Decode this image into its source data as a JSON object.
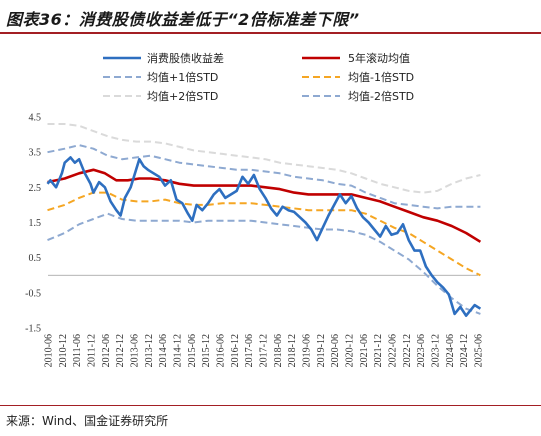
{
  "title": "图表36：消费股债收益差低于“2倍标准差下限”",
  "source": "来源：Wind、国金证券研究所",
  "chart_data": {
    "type": "line",
    "ylim": [
      -1.5,
      4.5
    ],
    "yticks": [
      4.5,
      3.5,
      2.5,
      1.5,
      0.5,
      -0.5,
      -1.5
    ],
    "xticks": [
      "2010-06",
      "2010-12",
      "2011-06",
      "2011-12",
      "2012-06",
      "2012-12",
      "2013-06",
      "2013-12",
      "2014-06",
      "2014-12",
      "2015-06",
      "2015-12",
      "2016-06",
      "2016-12",
      "2017-06",
      "2017-12",
      "2018-06",
      "2018-12",
      "2019-06",
      "2019-12",
      "2020-06",
      "2020-12",
      "2021-06",
      "2021-12",
      "2022-06",
      "2022-12",
      "2023-06",
      "2023-12",
      "2024-06",
      "2024-12",
      "2025-06"
    ],
    "legend_placement": "top",
    "series": [
      {
        "name": "消费股债收益差",
        "color": "#2e6fc0",
        "style": "solid",
        "width": 2.6,
        "values": [
          [
            2010.4,
            2.6
          ],
          [
            2010.5,
            2.7
          ],
          [
            2010.7,
            2.5
          ],
          [
            2010.9,
            2.9
          ],
          [
            2011.0,
            3.2
          ],
          [
            2011.2,
            3.35
          ],
          [
            2011.35,
            3.2
          ],
          [
            2011.5,
            3.3
          ],
          [
            2011.7,
            2.9
          ],
          [
            2011.9,
            2.6
          ],
          [
            2012.0,
            2.35
          ],
          [
            2012.2,
            2.65
          ],
          [
            2012.4,
            2.5
          ],
          [
            2012.6,
            2.1
          ],
          [
            2012.8,
            1.85
          ],
          [
            2012.95,
            1.7
          ],
          [
            2013.1,
            2.2
          ],
          [
            2013.3,
            2.5
          ],
          [
            2013.45,
            2.9
          ],
          [
            2013.6,
            3.3
          ],
          [
            2013.75,
            3.1
          ],
          [
            2013.9,
            3.0
          ],
          [
            2014.1,
            2.9
          ],
          [
            2014.3,
            2.8
          ],
          [
            2014.5,
            2.55
          ],
          [
            2014.7,
            2.7
          ],
          [
            2014.9,
            2.15
          ],
          [
            2015.1,
            2.05
          ],
          [
            2015.3,
            1.75
          ],
          [
            2015.45,
            1.55
          ],
          [
            2015.6,
            2.0
          ],
          [
            2015.8,
            1.85
          ],
          [
            2016.0,
            2.05
          ],
          [
            2016.2,
            2.3
          ],
          [
            2016.4,
            2.45
          ],
          [
            2016.6,
            2.2
          ],
          [
            2016.8,
            2.3
          ],
          [
            2017.0,
            2.4
          ],
          [
            2017.2,
            2.8
          ],
          [
            2017.4,
            2.6
          ],
          [
            2017.6,
            2.85
          ],
          [
            2017.8,
            2.45
          ],
          [
            2018.0,
            2.2
          ],
          [
            2018.2,
            1.9
          ],
          [
            2018.4,
            1.7
          ],
          [
            2018.6,
            1.95
          ],
          [
            2018.8,
            1.85
          ],
          [
            2019.0,
            1.8
          ],
          [
            2019.2,
            1.65
          ],
          [
            2019.4,
            1.5
          ],
          [
            2019.6,
            1.3
          ],
          [
            2019.8,
            1.0
          ],
          [
            2020.0,
            1.35
          ],
          [
            2020.2,
            1.7
          ],
          [
            2020.4,
            2.0
          ],
          [
            2020.6,
            2.3
          ],
          [
            2020.8,
            2.05
          ],
          [
            2021.0,
            2.25
          ],
          [
            2021.2,
            1.9
          ],
          [
            2021.4,
            1.65
          ],
          [
            2021.6,
            1.5
          ],
          [
            2021.8,
            1.3
          ],
          [
            2022.0,
            1.1
          ],
          [
            2022.2,
            1.4
          ],
          [
            2022.4,
            1.15
          ],
          [
            2022.6,
            1.2
          ],
          [
            2022.8,
            1.45
          ],
          [
            2023.0,
            1.0
          ],
          [
            2023.2,
            0.7
          ],
          [
            2023.4,
            0.7
          ],
          [
            2023.6,
            0.25
          ],
          [
            2023.8,
            0.0
          ],
          [
            2024.0,
            -0.2
          ],
          [
            2024.2,
            -0.35
          ],
          [
            2024.4,
            -0.55
          ],
          [
            2024.6,
            -1.1
          ],
          [
            2024.8,
            -0.9
          ],
          [
            2025.0,
            -1.15
          ],
          [
            2025.3,
            -0.85
          ],
          [
            2025.5,
            -0.95
          ]
        ]
      },
      {
        "name": "5年滚动均值",
        "color": "#c00000",
        "style": "solid",
        "width": 2.6,
        "values": [
          [
            2010.4,
            2.65
          ],
          [
            2011.0,
            2.75
          ],
          [
            2011.5,
            2.9
          ],
          [
            2012.0,
            3.0
          ],
          [
            2012.4,
            2.9
          ],
          [
            2012.8,
            2.7
          ],
          [
            2013.2,
            2.7
          ],
          [
            2013.6,
            2.75
          ],
          [
            2014.0,
            2.75
          ],
          [
            2014.5,
            2.7
          ],
          [
            2015.0,
            2.6
          ],
          [
            2015.5,
            2.55
          ],
          [
            2016.0,
            2.55
          ],
          [
            2016.5,
            2.55
          ],
          [
            2017.0,
            2.55
          ],
          [
            2017.5,
            2.55
          ],
          [
            2018.0,
            2.5
          ],
          [
            2018.5,
            2.45
          ],
          [
            2019.0,
            2.35
          ],
          [
            2019.5,
            2.3
          ],
          [
            2020.0,
            2.3
          ],
          [
            2020.5,
            2.3
          ],
          [
            2021.0,
            2.3
          ],
          [
            2021.5,
            2.2
          ],
          [
            2022.0,
            2.1
          ],
          [
            2022.5,
            1.95
          ],
          [
            2023.0,
            1.8
          ],
          [
            2023.5,
            1.65
          ],
          [
            2024.0,
            1.55
          ],
          [
            2024.5,
            1.4
          ],
          [
            2025.0,
            1.2
          ],
          [
            2025.5,
            0.95
          ]
        ]
      },
      {
        "name": "均值+1倍STD",
        "color": "#8ea9d1",
        "style": "dashed",
        "width": 2,
        "values": [
          [
            2010.4,
            3.5
          ],
          [
            2011.0,
            3.6
          ],
          [
            2011.5,
            3.7
          ],
          [
            2012.0,
            3.6
          ],
          [
            2012.5,
            3.4
          ],
          [
            2013.0,
            3.3
          ],
          [
            2013.5,
            3.35
          ],
          [
            2014.0,
            3.4
          ],
          [
            2014.5,
            3.3
          ],
          [
            2015.0,
            3.2
          ],
          [
            2015.5,
            3.15
          ],
          [
            2016.0,
            3.1
          ],
          [
            2016.5,
            3.05
          ],
          [
            2017.0,
            3.0
          ],
          [
            2017.5,
            3.0
          ],
          [
            2018.0,
            2.95
          ],
          [
            2018.5,
            2.9
          ],
          [
            2019.0,
            2.8
          ],
          [
            2019.5,
            2.75
          ],
          [
            2020.0,
            2.7
          ],
          [
            2020.5,
            2.6
          ],
          [
            2021.0,
            2.55
          ],
          [
            2021.5,
            2.35
          ],
          [
            2022.0,
            2.2
          ],
          [
            2022.5,
            2.05
          ],
          [
            2023.0,
            2.0
          ],
          [
            2023.5,
            1.95
          ],
          [
            2024.0,
            1.9
          ],
          [
            2024.5,
            1.95
          ],
          [
            2025.0,
            1.95
          ],
          [
            2025.5,
            1.95
          ]
        ]
      },
      {
        "name": "均值-1倍STD",
        "color": "#f5a623",
        "style": "dashed",
        "width": 2,
        "values": [
          [
            2010.4,
            1.85
          ],
          [
            2011.0,
            2.0
          ],
          [
            2011.5,
            2.2
          ],
          [
            2012.0,
            2.35
          ],
          [
            2012.5,
            2.35
          ],
          [
            2013.0,
            2.15
          ],
          [
            2013.5,
            2.1
          ],
          [
            2014.0,
            2.1
          ],
          [
            2014.5,
            2.15
          ],
          [
            2015.0,
            2.05
          ],
          [
            2015.5,
            2.0
          ],
          [
            2016.0,
            2.0
          ],
          [
            2016.5,
            2.05
          ],
          [
            2017.0,
            2.05
          ],
          [
            2017.5,
            2.05
          ],
          [
            2018.0,
            2.0
          ],
          [
            2018.5,
            1.95
          ],
          [
            2019.0,
            1.9
          ],
          [
            2019.5,
            1.85
          ],
          [
            2020.0,
            1.85
          ],
          [
            2020.5,
            1.85
          ],
          [
            2021.0,
            1.85
          ],
          [
            2021.5,
            1.75
          ],
          [
            2022.0,
            1.55
          ],
          [
            2022.5,
            1.35
          ],
          [
            2023.0,
            1.2
          ],
          [
            2023.5,
            0.95
          ],
          [
            2024.0,
            0.7
          ],
          [
            2024.5,
            0.45
          ],
          [
            2025.0,
            0.2
          ],
          [
            2025.5,
            0.0
          ]
        ]
      },
      {
        "name": "均值+2倍STD",
        "color": "#dadada",
        "style": "dashed",
        "width": 2,
        "values": [
          [
            2010.4,
            4.3
          ],
          [
            2011.0,
            4.3
          ],
          [
            2011.5,
            4.25
          ],
          [
            2012.0,
            4.1
          ],
          [
            2012.5,
            3.95
          ],
          [
            2013.0,
            3.85
          ],
          [
            2013.5,
            3.8
          ],
          [
            2014.0,
            3.8
          ],
          [
            2014.5,
            3.75
          ],
          [
            2015.0,
            3.65
          ],
          [
            2015.5,
            3.55
          ],
          [
            2016.0,
            3.5
          ],
          [
            2016.5,
            3.45
          ],
          [
            2017.0,
            3.4
          ],
          [
            2017.5,
            3.35
          ],
          [
            2018.0,
            3.3
          ],
          [
            2018.5,
            3.2
          ],
          [
            2019.0,
            3.15
          ],
          [
            2019.5,
            3.1
          ],
          [
            2020.0,
            3.05
          ],
          [
            2020.5,
            3.0
          ],
          [
            2021.0,
            2.9
          ],
          [
            2021.5,
            2.75
          ],
          [
            2022.0,
            2.6
          ],
          [
            2022.5,
            2.5
          ],
          [
            2023.0,
            2.4
          ],
          [
            2023.5,
            2.35
          ],
          [
            2024.0,
            2.4
          ],
          [
            2024.5,
            2.6
          ],
          [
            2025.0,
            2.75
          ],
          [
            2025.5,
            2.85
          ]
        ]
      },
      {
        "name": "均值-2倍STD",
        "color": "#8ea9d1",
        "style": "dashed",
        "width": 2,
        "values": [
          [
            2010.4,
            1.0
          ],
          [
            2011.0,
            1.2
          ],
          [
            2011.5,
            1.45
          ],
          [
            2012.0,
            1.6
          ],
          [
            2012.5,
            1.75
          ],
          [
            2013.0,
            1.6
          ],
          [
            2013.5,
            1.55
          ],
          [
            2014.0,
            1.55
          ],
          [
            2014.5,
            1.55
          ],
          [
            2015.0,
            1.55
          ],
          [
            2015.5,
            1.5
          ],
          [
            2016.0,
            1.55
          ],
          [
            2016.5,
            1.55
          ],
          [
            2017.0,
            1.55
          ],
          [
            2017.5,
            1.55
          ],
          [
            2018.0,
            1.5
          ],
          [
            2018.5,
            1.45
          ],
          [
            2019.0,
            1.4
          ],
          [
            2019.5,
            1.35
          ],
          [
            2020.0,
            1.3
          ],
          [
            2020.5,
            1.3
          ],
          [
            2021.0,
            1.25
          ],
          [
            2021.5,
            1.15
          ],
          [
            2022.0,
            0.95
          ],
          [
            2022.5,
            0.7
          ],
          [
            2023.0,
            0.45
          ],
          [
            2023.5,
            0.1
          ],
          [
            2024.0,
            -0.3
          ],
          [
            2024.5,
            -0.65
          ],
          [
            2025.0,
            -0.95
          ],
          [
            2025.5,
            -1.1
          ]
        ]
      }
    ]
  }
}
